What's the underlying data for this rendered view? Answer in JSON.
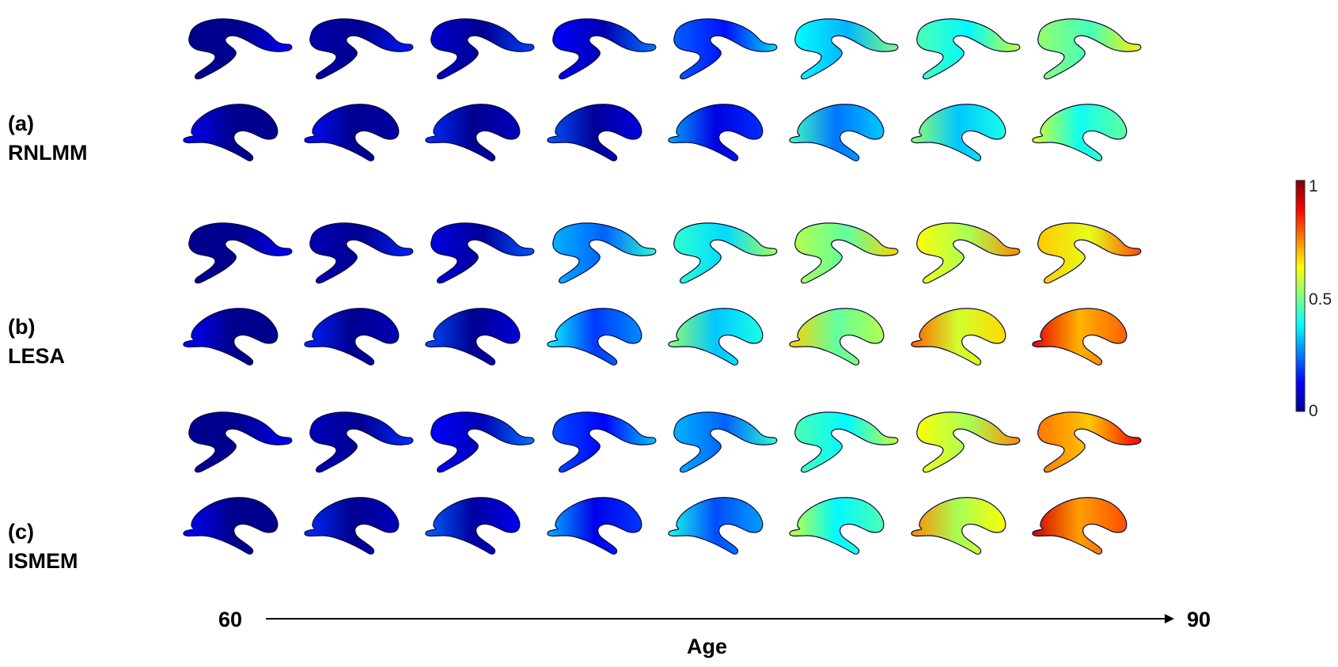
{
  "groups": [
    {
      "letter": "(a)",
      "method": "RNLMM",
      "rows": [
        [
          0,
          0.03,
          0.07,
          0.12,
          0.22,
          0.38,
          0.45,
          0.52
        ],
        [
          0,
          0.02,
          0.05,
          0.09,
          0.17,
          0.32,
          0.4,
          0.47
        ]
      ]
    },
    {
      "letter": "(b)",
      "method": "LESA",
      "rows": [
        [
          0,
          0.04,
          0.09,
          0.3,
          0.42,
          0.55,
          0.62,
          0.68
        ],
        [
          0,
          0.04,
          0.08,
          0.26,
          0.4,
          0.55,
          0.66,
          0.78
        ]
      ]
    },
    {
      "letter": "(c)",
      "method": "ISMEM",
      "rows": [
        [
          0,
          0.05,
          0.12,
          0.2,
          0.3,
          0.45,
          0.62,
          0.76
        ],
        [
          0,
          0.05,
          0.1,
          0.18,
          0.28,
          0.45,
          0.62,
          0.8
        ]
      ]
    }
  ],
  "axis": {
    "start": "60",
    "end": "90",
    "title": "Age"
  },
  "colorbar": {
    "ticks": [
      "1",
      "0.5",
      "0"
    ],
    "min": 0,
    "max": 1,
    "colormap": [
      "#00008f",
      "#0000ff",
      "#0080ff",
      "#00ffff",
      "#80ff80",
      "#ffff00",
      "#ff8000",
      "#ff0000",
      "#800000"
    ]
  }
}
